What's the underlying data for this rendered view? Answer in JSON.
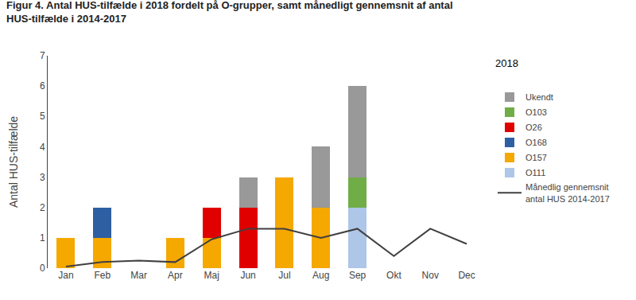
{
  "chart_data": {
    "type": "bar",
    "stacked": true,
    "title": "Figur 4. Antal HUS-tilfælde i 2018 fordelt på O-grupper, samt månedligt gennemsnit af antal\nHUS-tilfælde i 2014-2017",
    "ylabel": "Antal HUS-tilfælde",
    "categories": [
      "Jan",
      "Feb",
      "Mar",
      "Apr",
      "Maj",
      "Jun",
      "Jul",
      "Aug",
      "Sep",
      "Okt",
      "Nov",
      "Dec"
    ],
    "series": [
      {
        "name": "O111",
        "color": "#aec6e8",
        "values": [
          0,
          0,
          0,
          0,
          0,
          0,
          0,
          0,
          2,
          0,
          0,
          0
        ]
      },
      {
        "name": "O157",
        "color": "#f5a800",
        "values": [
          1,
          1,
          0,
          1,
          1,
          0,
          3,
          2,
          0,
          0,
          0,
          0
        ]
      },
      {
        "name": "O168",
        "color": "#2e5fa3",
        "values": [
          0,
          1,
          0,
          0,
          0,
          0,
          0,
          0,
          0,
          0,
          0,
          0
        ]
      },
      {
        "name": "O26",
        "color": "#e00000",
        "values": [
          0,
          0,
          0,
          0,
          1,
          2,
          0,
          0,
          0,
          0,
          0,
          0
        ]
      },
      {
        "name": "O103",
        "color": "#70ad47",
        "values": [
          0,
          0,
          0,
          0,
          0,
          0,
          0,
          0,
          1,
          0,
          0,
          0
        ]
      },
      {
        "name": "Ukendt",
        "color": "#999999",
        "values": [
          0,
          0,
          0,
          0,
          0,
          1,
          0,
          2,
          3,
          0,
          0,
          0
        ]
      },
      {
        "name": "Månedlig gennemsnit\nantal HUS 2014-2017",
        "type": "line",
        "color": "#404040",
        "values": [
          0.05,
          0.2,
          0.25,
          0.2,
          0.95,
          1.3,
          1.3,
          1.0,
          1.3,
          0.4,
          1.3,
          0.8
        ]
      }
    ],
    "ylim": [
      0,
      7
    ],
    "yticks": [
      0,
      1,
      2,
      3,
      4,
      5,
      6,
      7
    ],
    "annotations": [
      "2018"
    ],
    "grid": false,
    "legend": "right"
  }
}
